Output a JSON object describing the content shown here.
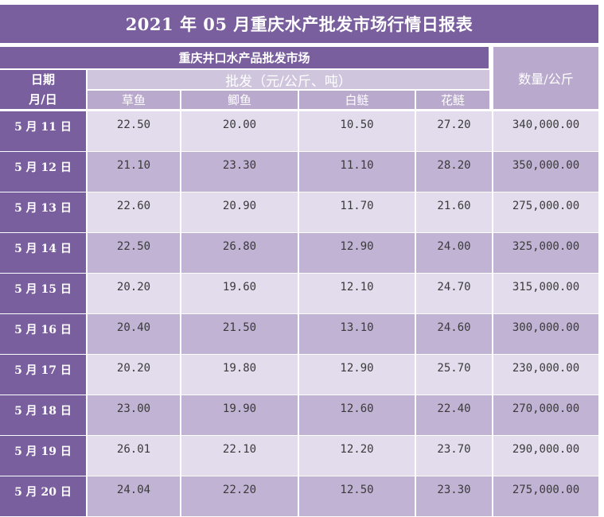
{
  "title": "2021 年 05 月重庆水产批发市场行情日报表",
  "market_name": "重庆井口水产品批发市场",
  "headers": {
    "date_line1": "日期",
    "date_line2": "月/日",
    "wholesale": "批发（元/公斤、吨）",
    "quantity": "数量/公斤",
    "fish": [
      "草鱼",
      "鲫鱼",
      "白鲢",
      "花鲢"
    ]
  },
  "rows": [
    {
      "date": "5 月 11 日",
      "prices": [
        "22.50",
        "20.00",
        "10.50",
        "27.20"
      ],
      "quantity": "340,000.00"
    },
    {
      "date": "5 月 12 日",
      "prices": [
        "21.10",
        "23.30",
        "11.10",
        "28.20"
      ],
      "quantity": "350,000.00"
    },
    {
      "date": "5 月 13 日",
      "prices": [
        "22.60",
        "20.90",
        "11.70",
        "21.60"
      ],
      "quantity": "275,000.00"
    },
    {
      "date": "5 月 14 日",
      "prices": [
        "22.50",
        "26.80",
        "12.90",
        "24.00"
      ],
      "quantity": "325,000.00"
    },
    {
      "date": "5 月 15 日",
      "prices": [
        "20.20",
        "19.60",
        "12.10",
        "24.70"
      ],
      "quantity": "315,000.00"
    },
    {
      "date": "5 月 16 日",
      "prices": [
        "20.40",
        "21.50",
        "13.10",
        "24.60"
      ],
      "quantity": "300,000.00"
    },
    {
      "date": "5 月 17 日",
      "prices": [
        "20.20",
        "19.80",
        "12.90",
        "25.70"
      ],
      "quantity": "230,000.00"
    },
    {
      "date": "5 月 18 日",
      "prices": [
        "23.00",
        "19.90",
        "12.60",
        "22.40"
      ],
      "quantity": "270,000.00"
    },
    {
      "date": "5 月 19 日",
      "prices": [
        "26.01",
        "22.10",
        "12.20",
        "23.70"
      ],
      "quantity": "290,000.00"
    },
    {
      "date": "5 月 20 日",
      "prices": [
        "24.04",
        "22.20",
        "12.50",
        "23.30"
      ],
      "quantity": "275,000.00"
    }
  ],
  "colors": {
    "header_purple": "#7a5f9e",
    "row_light": "#e3dced",
    "row_dark": "#c1b3d4"
  }
}
